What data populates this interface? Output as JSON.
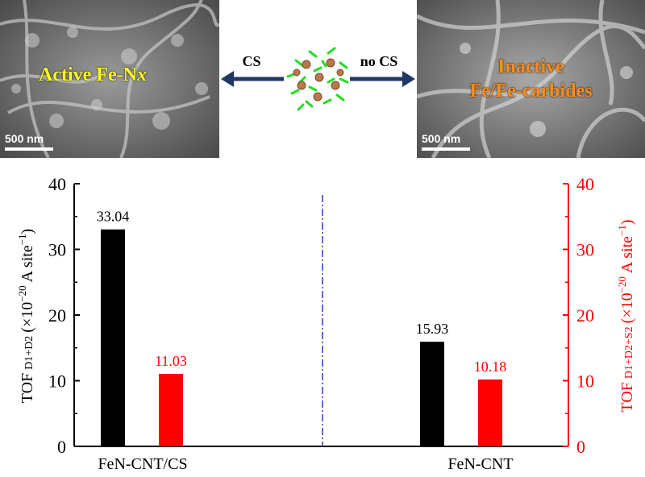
{
  "sem_images": {
    "left": {
      "label_main": "Active Fe-N",
      "label_italic": "x",
      "scale": "500 nm"
    },
    "right": {
      "label_line1": "Inactive",
      "label_line2": "Fe/Fe-carbides",
      "scale": "500 nm"
    }
  },
  "arrows": {
    "left_label": "CS",
    "right_label": "no CS"
  },
  "colors": {
    "series1": "#000000",
    "series2": "#ff0000",
    "divider": "#3333cc",
    "arrow": "#1f3864",
    "label_left": "#ffff1a",
    "label_right": "#ff8c1a"
  },
  "chart_data": {
    "type": "bar",
    "categories": [
      "FeN-CNT/CS",
      "FeN-CNT"
    ],
    "series": [
      {
        "name": "TOF D1+D2",
        "axis": "left",
        "values": [
          33.04,
          15.93
        ],
        "labels": [
          "33.04",
          "15.93"
        ]
      },
      {
        "name": "TOF D1+D2+S2",
        "axis": "right",
        "values": [
          11.03,
          10.18
        ],
        "labels": [
          "11.03",
          "10.18"
        ]
      }
    ],
    "ylim": [
      0,
      40
    ],
    "yticks": [
      "0",
      "10",
      "20",
      "30",
      "40"
    ],
    "ylabel_left": {
      "main": "TOF",
      "sub": "D1+D2",
      "unit": "(×10",
      "exp": "−20",
      "unit2": "A site",
      "exp2": "−1",
      "close": ")"
    },
    "ylabel_right": {
      "main": "TOF",
      "sub": "D1+D2+S2",
      "unit": "(×10",
      "exp": "−20",
      "unit2": "A site",
      "exp2": "−1",
      "close": ")"
    },
    "grid": false,
    "divider": "dash-dot vertical line between groups"
  }
}
